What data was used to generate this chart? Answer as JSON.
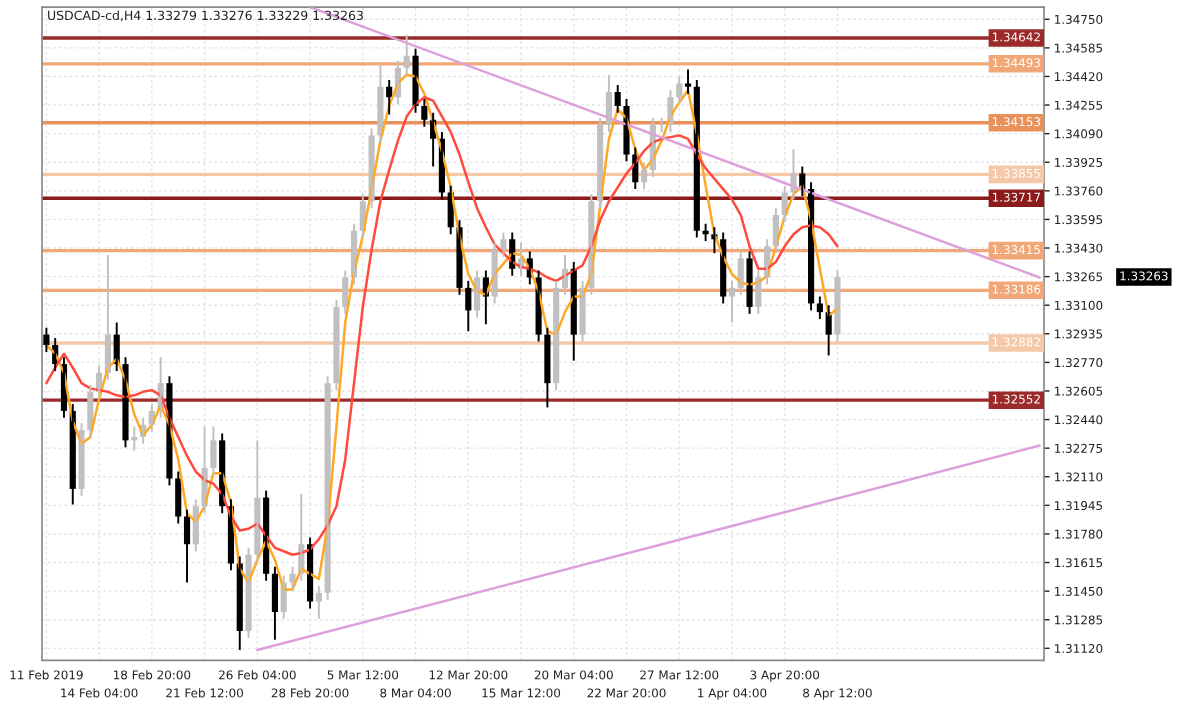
{
  "chart_data": {
    "type": "candlestick",
    "title": "USDCAD-cd,H4 1.33279 1.33276 1.33229 1.33263",
    "categories": [
      "11 Feb 2019",
      null,
      null,
      null,
      null,
      null,
      "14 Feb 04:00",
      null,
      null,
      null,
      null,
      null,
      "18 Feb 20:00",
      null,
      null,
      null,
      null,
      null,
      "21 Feb 12:00",
      null,
      null,
      null,
      null,
      null,
      "26 Feb 04:00",
      null,
      null,
      null,
      null,
      null,
      "28 Feb 20:00",
      null,
      null,
      null,
      null,
      null,
      "5 Mar 12:00",
      null,
      null,
      null,
      null,
      null,
      "8 Mar 04:00",
      null,
      null,
      null,
      null,
      null,
      "12 Mar 20:00",
      null,
      null,
      null,
      null,
      null,
      "15 Mar 12:00",
      null,
      null,
      null,
      null,
      null,
      "20 Mar 04:00",
      null,
      null,
      null,
      null,
      null,
      "22 Mar 20:00",
      null,
      null,
      null,
      null,
      null,
      "27 Mar 12:00",
      null,
      null,
      null,
      null,
      null,
      "1 Apr 04:00",
      null,
      null,
      null,
      null,
      null,
      "3 Apr 20:00",
      null,
      null,
      null,
      null,
      null,
      "8 Apr 12:00",
      null,
      null,
      null,
      null,
      null,
      null,
      null,
      null,
      null,
      null,
      null,
      null,
      null,
      null,
      null,
      null,
      null,
      null,
      null,
      null,
      null,
      null,
      null
    ],
    "ohlc": [
      [
        1.3293,
        1.3297,
        1.3283,
        1.3287
      ],
      [
        1.3287,
        1.3291,
        1.3272,
        1.3276
      ],
      [
        1.3276,
        1.328,
        1.3245,
        1.3249
      ],
      [
        1.3249,
        1.3253,
        1.3195,
        1.3204
      ],
      [
        1.3204,
        1.3242,
        1.32,
        1.3238
      ],
      [
        1.3238,
        1.3264,
        1.3234,
        1.326
      ],
      [
        1.326,
        1.3275,
        1.3256,
        1.3271
      ],
      [
        1.3271,
        1.3339,
        1.3267,
        1.3293
      ],
      [
        1.3293,
        1.33,
        1.3272,
        1.3276
      ],
      [
        1.3276,
        1.328,
        1.3228,
        1.3232
      ],
      [
        1.3232,
        1.324,
        1.3226,
        1.3234
      ],
      [
        1.3234,
        1.3245,
        1.323,
        1.3241
      ],
      [
        1.3241,
        1.3253,
        1.3237,
        1.3249
      ],
      [
        1.3249,
        1.328,
        1.3245,
        1.3265
      ],
      [
        1.3265,
        1.3269,
        1.3206,
        1.321
      ],
      [
        1.321,
        1.3214,
        1.3184,
        1.3188
      ],
      [
        1.3188,
        1.3192,
        1.315,
        1.3172
      ],
      [
        1.3172,
        1.3198,
        1.3168,
        1.3194
      ],
      [
        1.3194,
        1.324,
        1.319,
        1.3216
      ],
      [
        1.3216,
        1.324,
        1.3212,
        1.3232
      ],
      [
        1.3232,
        1.3236,
        1.319,
        1.3194
      ],
      [
        1.3194,
        1.3198,
        1.3157,
        1.3161
      ],
      [
        1.3161,
        1.3165,
        1.3111,
        1.3122
      ],
      [
        1.3122,
        1.317,
        1.3118,
        1.3166
      ],
      [
        1.3166,
        1.3232,
        1.3162,
        1.3199
      ],
      [
        1.3199,
        1.3203,
        1.3151,
        1.3155
      ],
      [
        1.3155,
        1.3159,
        1.3117,
        1.3133
      ],
      [
        1.3133,
        1.3154,
        1.3129,
        1.315
      ],
      [
        1.315,
        1.3159,
        1.3146,
        1.3155
      ],
      [
        1.3155,
        1.3201,
        1.3151,
        1.3172
      ],
      [
        1.3172,
        1.3176,
        1.3135,
        1.3139
      ],
      [
        1.3139,
        1.3148,
        1.3129,
        1.3144
      ],
      [
        1.3144,
        1.3269,
        1.314,
        1.3265
      ],
      [
        1.3265,
        1.3313,
        1.3261,
        1.3309
      ],
      [
        1.3309,
        1.333,
        1.3305,
        1.3326
      ],
      [
        1.3326,
        1.3357,
        1.3322,
        1.3353
      ],
      [
        1.3353,
        1.3374,
        1.3349,
        1.337
      ],
      [
        1.337,
        1.3412,
        1.3366,
        1.3408
      ],
      [
        1.3408,
        1.3449,
        1.3404,
        1.3436
      ],
      [
        1.3436,
        1.344,
        1.342,
        1.343
      ],
      [
        1.343,
        1.3451,
        1.3426,
        1.3447
      ],
      [
        1.3447,
        1.3466,
        1.3443,
        1.3454
      ],
      [
        1.3454,
        1.3458,
        1.3421,
        1.3425
      ],
      [
        1.3425,
        1.3429,
        1.3413,
        1.3417
      ],
      [
        1.3417,
        1.3421,
        1.339,
        1.3406
      ],
      [
        1.3406,
        1.341,
        1.3371,
        1.3375
      ],
      [
        1.3375,
        1.3379,
        1.3351,
        1.3355
      ],
      [
        1.3355,
        1.3359,
        1.3316,
        1.332
      ],
      [
        1.332,
        1.3324,
        1.3295,
        1.3307
      ],
      [
        1.3307,
        1.333,
        1.3303,
        1.3326
      ],
      [
        1.3326,
        1.333,
        1.3299,
        1.3315
      ],
      [
        1.3315,
        1.3346,
        1.3311,
        1.3342
      ],
      [
        1.3342,
        1.3352,
        1.3338,
        1.3348
      ],
      [
        1.3348,
        1.3352,
        1.3327,
        1.3331
      ],
      [
        1.3331,
        1.3346,
        1.3327,
        1.3337
      ],
      [
        1.3337,
        1.3341,
        1.3322,
        1.3326
      ],
      [
        1.3326,
        1.333,
        1.3289,
        1.3293
      ],
      [
        1.3293,
        1.3297,
        1.3251,
        1.3265
      ],
      [
        1.3265,
        1.3324,
        1.3261,
        1.332
      ],
      [
        1.332,
        1.3339,
        1.3316,
        1.3331
      ],
      [
        1.3331,
        1.3335,
        1.3278,
        1.3293
      ],
      [
        1.3293,
        1.3324,
        1.3289,
        1.332
      ],
      [
        1.332,
        1.3374,
        1.3316,
        1.337
      ],
      [
        1.337,
        1.3418,
        1.3366,
        1.3414
      ],
      [
        1.3414,
        1.3443,
        1.341,
        1.3433
      ],
      [
        1.3433,
        1.3437,
        1.3421,
        1.3425
      ],
      [
        1.3425,
        1.3429,
        1.3393,
        1.3397
      ],
      [
        1.3397,
        1.3401,
        1.3377,
        1.3381
      ],
      [
        1.3381,
        1.3392,
        1.3377,
        1.3388
      ],
      [
        1.3388,
        1.3418,
        1.3384,
        1.3414
      ],
      [
        1.3414,
        1.3418,
        1.341,
        1.3414
      ],
      [
        1.3414,
        1.3434,
        1.341,
        1.343
      ],
      [
        1.343,
        1.3442,
        1.3426,
        1.3438
      ],
      [
        1.3438,
        1.3446,
        1.3432,
        1.3436
      ],
      [
        1.3436,
        1.344,
        1.3349,
        1.3353
      ],
      [
        1.3353,
        1.3357,
        1.3347,
        1.3351
      ],
      [
        1.3351,
        1.3355,
        1.334,
        1.3348
      ],
      [
        1.3348,
        1.3352,
        1.3311,
        1.3315
      ],
      [
        1.3315,
        1.3324,
        1.33,
        1.332
      ],
      [
        1.332,
        1.3341,
        1.3316,
        1.3337
      ],
      [
        1.3337,
        1.3341,
        1.3305,
        1.3309
      ],
      [
        1.3309,
        1.333,
        1.3305,
        1.3326
      ],
      [
        1.3326,
        1.3348,
        1.3322,
        1.3344
      ],
      [
        1.3344,
        1.3366,
        1.334,
        1.3362
      ],
      [
        1.3362,
        1.3379,
        1.3358,
        1.3375
      ],
      [
        1.3375,
        1.34,
        1.3371,
        1.3386
      ],
      [
        1.3386,
        1.339,
        1.3373,
        1.3377
      ],
      [
        1.3377,
        1.3381,
        1.3307,
        1.3311
      ],
      [
        1.3311,
        1.3315,
        1.3302,
        1.3306
      ],
      [
        1.3306,
        1.331,
        1.3281,
        1.3293
      ],
      [
        1.3293,
        1.333,
        1.3289,
        1.33263
      ],
      null,
      null,
      null,
      null,
      null,
      null,
      null,
      null,
      null,
      null,
      null,
      null,
      null,
      null,
      null,
      null,
      null,
      null,
      null,
      null,
      null,
      null,
      null
    ],
    "colors": [
      "#000000",
      "#000000",
      "#000000",
      "#000000",
      "#c0c0c0",
      "#c0c0c0",
      "#c0c0c0",
      "#c0c0c0",
      "#000000",
      "#000000",
      "#c0c0c0",
      "#c0c0c0",
      "#c0c0c0",
      "#c0c0c0",
      "#000000",
      "#000000",
      "#000000",
      "#c0c0c0",
      "#c0c0c0",
      "#c0c0c0",
      "#000000",
      "#000000",
      "#000000",
      "#c0c0c0",
      "#c0c0c0",
      "#000000",
      "#000000",
      "#c0c0c0",
      "#c0c0c0",
      "#c0c0c0",
      "#000000",
      "#c0c0c0",
      "#c0c0c0",
      "#c0c0c0",
      "#c0c0c0",
      "#c0c0c0",
      "#c0c0c0",
      "#c0c0c0",
      "#c0c0c0",
      "#000000",
      "#c0c0c0",
      "#c0c0c0",
      "#000000",
      "#000000",
      "#000000",
      "#000000",
      "#000000",
      "#000000",
      "#000000",
      "#c0c0c0",
      "#000000",
      "#c0c0c0",
      "#c0c0c0",
      "#000000",
      "#c0c0c0",
      "#000000",
      "#000000",
      "#000000",
      "#c0c0c0",
      "#c0c0c0",
      "#000000",
      "#c0c0c0",
      "#c0c0c0",
      "#c0c0c0",
      "#c0c0c0",
      "#000000",
      "#000000",
      "#000000",
      "#c0c0c0",
      "#c0c0c0",
      "#c0c0c0",
      "#c0c0c0",
      "#c0c0c0",
      "#000000",
      "#000000",
      "#000000",
      "#000000",
      "#000000",
      "#c0c0c0",
      "#c0c0c0",
      "#000000",
      "#c0c0c0",
      "#c0c0c0",
      "#c0c0c0",
      "#c0c0c0",
      "#c0c0c0",
      "#000000",
      "#000000",
      "#000000",
      "#000000",
      "#c0c0c0",
      null,
      null,
      null,
      null,
      null,
      null,
      null,
      null,
      null,
      null,
      null,
      null,
      null,
      null,
      null,
      null,
      null,
      null,
      null,
      null,
      null,
      null,
      null
    ],
    "series": [
      {
        "type": "line",
        "color": "#ffa726",
        "values": [
          1.3287,
          1.3282,
          1.3271,
          1.3243,
          1.323,
          1.3234,
          1.3256,
          1.3274,
          1.3279,
          1.3267,
          1.3247,
          1.3235,
          1.3241,
          1.3252,
          1.3241,
          1.3221,
          1.319,
          1.3185,
          1.3194,
          1.3213,
          1.3213,
          1.3196,
          1.3158,
          1.315,
          1.3163,
          1.3174,
          1.3163,
          1.3146,
          1.3146,
          1.3158,
          1.3155,
          1.3152,
          1.3183,
          1.324,
          1.33,
          1.3329,
          1.335,
          1.3377,
          1.3405,
          1.3425,
          1.3438,
          1.3443,
          1.3442,
          1.3432,
          1.3416,
          1.3399,
          1.3378,
          1.335,
          1.3328,
          1.3318,
          1.3316,
          1.3328,
          1.3334,
          1.334,
          1.3339,
          1.3331,
          1.3318,
          1.3295,
          1.3293,
          1.3306,
          1.3315,
          1.3315,
          1.3328,
          1.3367,
          1.3406,
          1.3423,
          1.3418,
          1.34,
          1.3388,
          1.3394,
          1.3405,
          1.3419,
          1.3427,
          1.3434,
          1.3409,
          1.3379,
          1.3351,
          1.3338,
          1.3328,
          1.3323,
          1.3322,
          1.3323,
          1.3327,
          1.3344,
          1.3361,
          1.3374,
          1.3379,
          1.3359,
          1.3331,
          1.3304,
          1.3308,
          null,
          null,
          null,
          null,
          null,
          null,
          null,
          null,
          null,
          null,
          null,
          null,
          null,
          null,
          null,
          null,
          null,
          null,
          null,
          null,
          null,
          null,
          null
        ]
      },
      {
        "type": "line",
        "color": "#ff4a3d",
        "values": [
          1.3265,
          1.3274,
          1.3282,
          1.3274,
          1.3265,
          1.3262,
          1.3261,
          1.326,
          1.3258,
          1.3257,
          1.3258,
          1.326,
          1.3261,
          1.3258,
          1.3245,
          1.3234,
          1.3223,
          1.3214,
          1.3209,
          1.3207,
          1.3201,
          1.3188,
          1.318,
          1.3181,
          1.3184,
          1.3177,
          1.317,
          1.3168,
          1.3166,
          1.3167,
          1.3169,
          1.3175,
          1.3183,
          1.3194,
          1.3221,
          1.3265,
          1.3309,
          1.3342,
          1.337,
          1.3388,
          1.3405,
          1.3419,
          1.3426,
          1.343,
          1.3428,
          1.3419,
          1.341,
          1.3397,
          1.3381,
          1.3366,
          1.3355,
          1.3345,
          1.334,
          1.3335,
          1.3332,
          1.3331,
          1.3329,
          1.3326,
          1.3324,
          1.3327,
          1.333,
          1.3333,
          1.3344,
          1.3359,
          1.337,
          1.3378,
          1.3386,
          1.3392,
          1.3399,
          1.3404,
          1.3406,
          1.3407,
          1.3408,
          1.3406,
          1.3397,
          1.3389,
          1.3383,
          1.3377,
          1.3371,
          1.3362,
          1.3344,
          1.3331,
          1.3331,
          1.3335,
          1.3344,
          1.3351,
          1.3355,
          1.3356,
          1.3355,
          1.3351,
          1.3344,
          null,
          null,
          null,
          null,
          null,
          null,
          null,
          null,
          null,
          null,
          null,
          null,
          null,
          null,
          null,
          null,
          null,
          null,
          null,
          null,
          null,
          null,
          null
        ]
      },
      {
        "type": "line",
        "color": "#dda0dd",
        "values": [
          null,
          null,
          null,
          null,
          null,
          null,
          null,
          null,
          null,
          null,
          null,
          null,
          null,
          null,
          null,
          null,
          null,
          null,
          null,
          null,
          null,
          null,
          null,
          null,
          null,
          null,
          null,
          null,
          null,
          null,
          1.3482,
          null,
          null,
          null,
          null,
          null,
          null,
          null,
          null,
          null,
          null,
          null,
          null,
          null,
          null,
          null,
          null,
          null,
          null,
          null,
          null,
          null,
          null,
          null,
          null,
          null,
          null,
          null,
          null,
          null,
          null,
          null,
          null,
          null,
          null,
          null,
          null,
          null,
          null,
          null,
          null,
          null,
          null,
          null,
          null,
          null,
          null,
          null,
          null,
          null,
          null,
          null,
          null,
          null,
          null,
          null,
          null,
          null,
          null,
          null,
          null,
          null,
          null,
          null,
          null,
          null,
          null,
          null,
          null,
          null,
          null,
          null,
          null,
          null,
          null,
          null,
          null,
          null,
          null,
          null,
          null,
          null,
          null,
          1.3326
        ]
      },
      {
        "type": "line",
        "color": "#dda0dd",
        "values": [
          null,
          null,
          null,
          null,
          null,
          null,
          null,
          null,
          null,
          null,
          null,
          null,
          null,
          null,
          null,
          null,
          null,
          null,
          null,
          null,
          null,
          null,
          null,
          null,
          1.3111,
          null,
          null,
          null,
          null,
          null,
          null,
          null,
          null,
          null,
          null,
          null,
          null,
          null,
          null,
          null,
          null,
          null,
          null,
          null,
          null,
          null,
          null,
          null,
          null,
          null,
          null,
          null,
          null,
          null,
          null,
          null,
          null,
          null,
          null,
          null,
          null,
          null,
          null,
          null,
          null,
          null,
          null,
          null,
          null,
          null,
          null,
          null,
          null,
          null,
          null,
          null,
          null,
          null,
          null,
          null,
          null,
          null,
          null,
          null,
          null,
          null,
          null,
          null,
          null,
          null,
          null,
          null,
          null,
          null,
          null,
          null,
          null,
          null,
          null,
          null,
          null,
          null,
          null,
          null,
          null,
          null,
          null,
          null,
          null,
          null,
          null,
          null,
          null,
          1.3229
        ]
      }
    ],
    "ylim": [
      1.3105,
      1.3482
    ],
    "yticks": [
      {
        "value": 1.3112,
        "label": "1.31120"
      },
      {
        "value": 1.31285,
        "label": "1.31285"
      },
      {
        "value": 1.3145,
        "label": "1.31450"
      },
      {
        "value": 1.31615,
        "label": "1.31615"
      },
      {
        "value": 1.3178,
        "label": "1.31780"
      },
      {
        "value": 1.31945,
        "label": "1.31945"
      },
      {
        "value": 1.3211,
        "label": "1.32110"
      },
      {
        "value": 1.32275,
        "label": "1.32275"
      },
      {
        "value": 1.3244,
        "label": "1.32440"
      },
      {
        "value": 1.32605,
        "label": "1.32605"
      },
      {
        "value": 1.3277,
        "label": "1.32770"
      },
      {
        "value": 1.32935,
        "label": "1.32935"
      },
      {
        "value": 1.331,
        "label": "1.33100"
      },
      {
        "value": 1.33265,
        "label": "1.33265"
      },
      {
        "value": 1.3343,
        "label": "1.33430"
      },
      {
        "value": 1.33595,
        "label": "1.33595"
      },
      {
        "value": 1.3376,
        "label": "1.33760"
      },
      {
        "value": 1.33925,
        "label": "1.33925"
      },
      {
        "value": 1.3409,
        "label": "1.34090"
      },
      {
        "value": 1.34255,
        "label": "1.34255"
      },
      {
        "value": 1.3442,
        "label": "1.34420"
      },
      {
        "value": 1.34585,
        "label": "1.34585"
      },
      {
        "value": 1.3475,
        "label": "1.34750"
      }
    ],
    "ref_lines": [
      {
        "axis": "y",
        "value": 1.34642,
        "label": "1.34642",
        "color": "#9b2a2a"
      },
      {
        "axis": "y",
        "value": 1.34493,
        "label": "1.34493",
        "color": "#f0a878"
      },
      {
        "axis": "y",
        "value": 1.34153,
        "label": "1.34153",
        "color": "#e8915a"
      },
      {
        "axis": "y",
        "value": 1.33855,
        "label": "1.33855",
        "color": "#f5c8a8"
      },
      {
        "axis": "y",
        "value": 1.33717,
        "label": "1.33717",
        "color": "#8b1a1a"
      },
      {
        "axis": "y",
        "value": 1.33415,
        "label": "1.33415",
        "color": "#f0a878"
      },
      {
        "axis": "y",
        "value": 1.33186,
        "label": "1.33186",
        "color": "#f0a878"
      },
      {
        "axis": "y",
        "value": 1.32882,
        "label": "1.32882",
        "color": "#f5c8a8"
      },
      {
        "axis": "y",
        "value": 1.32552,
        "label": "1.32552",
        "color": "#9b2a2a"
      }
    ],
    "annotations": [
      "1.33263"
    ],
    "grid": true
  }
}
